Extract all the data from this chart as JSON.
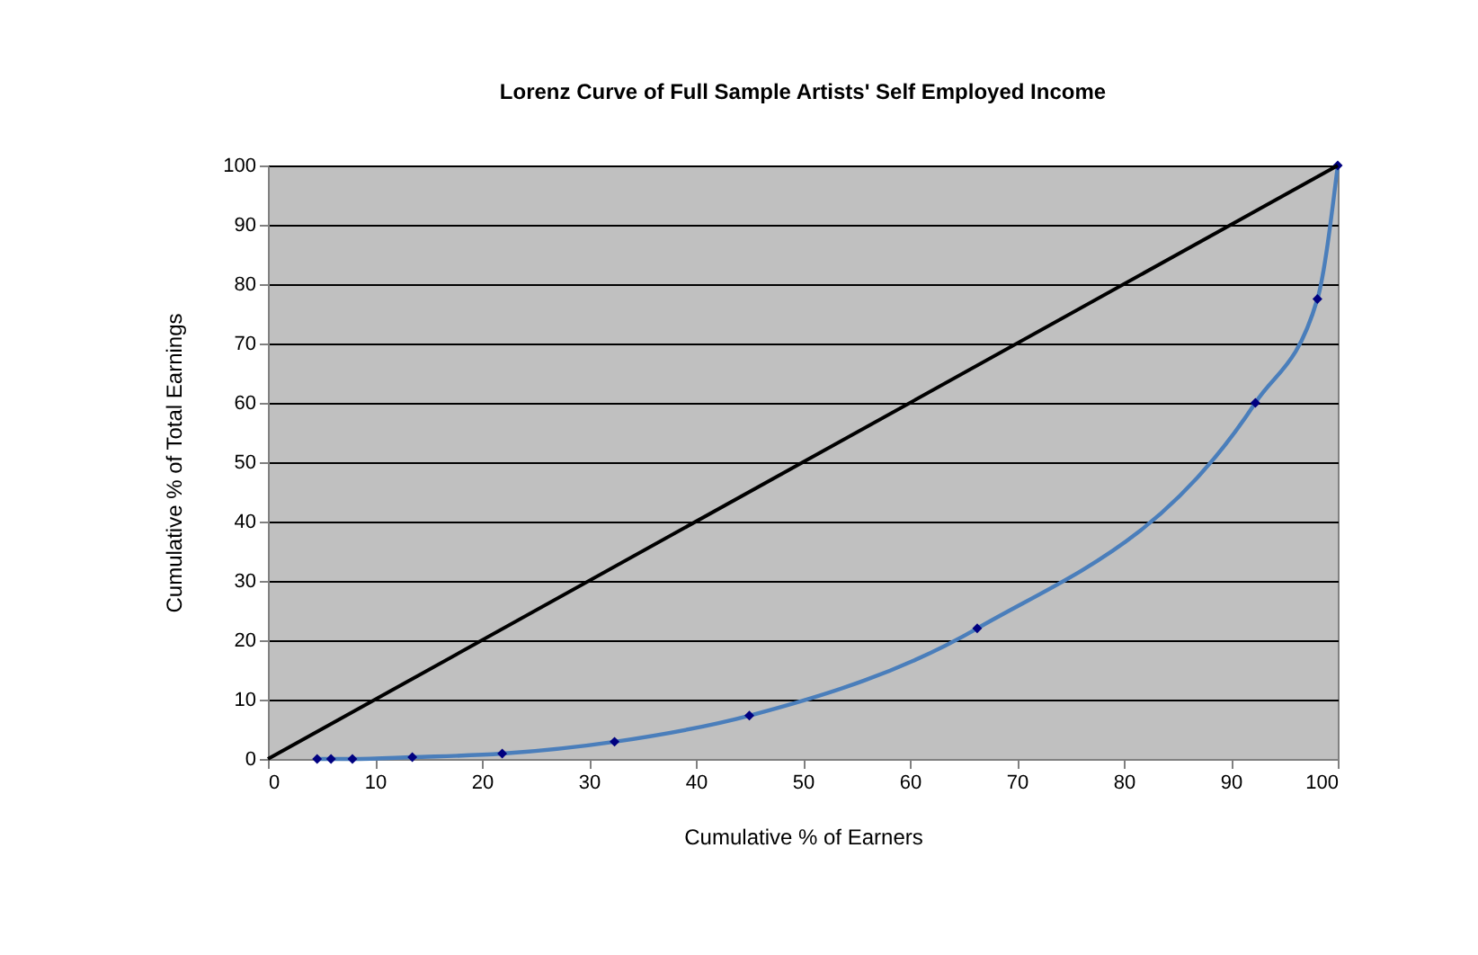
{
  "chart_data": {
    "type": "line",
    "title": "Lorenz Curve of Full Sample Artists' Self Employed Income",
    "xlabel": "Cumulative % of Earners",
    "ylabel": "Cumulative % of Total Earnings",
    "series": [
      {
        "color": "#4a7ebb",
        "marker": "diamond",
        "x": [
          4.6,
          5.9,
          7.9,
          13.5,
          21.9,
          32.4,
          45,
          66.3,
          92.3,
          98.1,
          100
        ],
        "values": [
          0,
          0,
          0,
          0.3,
          0.9,
          2.9,
          7.3,
          22,
          60,
          77.5,
          100
        ]
      },
      {
        "color": "#000000",
        "marker": "none",
        "x": [
          0,
          100
        ],
        "values": [
          0,
          100
        ]
      }
    ],
    "xlim": [
      0,
      100
    ],
    "ylim": [
      0,
      100
    ],
    "xticks": [
      0,
      10,
      20,
      30,
      40,
      50,
      60,
      70,
      80,
      90,
      100
    ],
    "yticks": [
      0,
      10,
      20,
      30,
      40,
      50,
      60,
      70,
      80,
      90,
      100
    ],
    "grid": "y"
  }
}
